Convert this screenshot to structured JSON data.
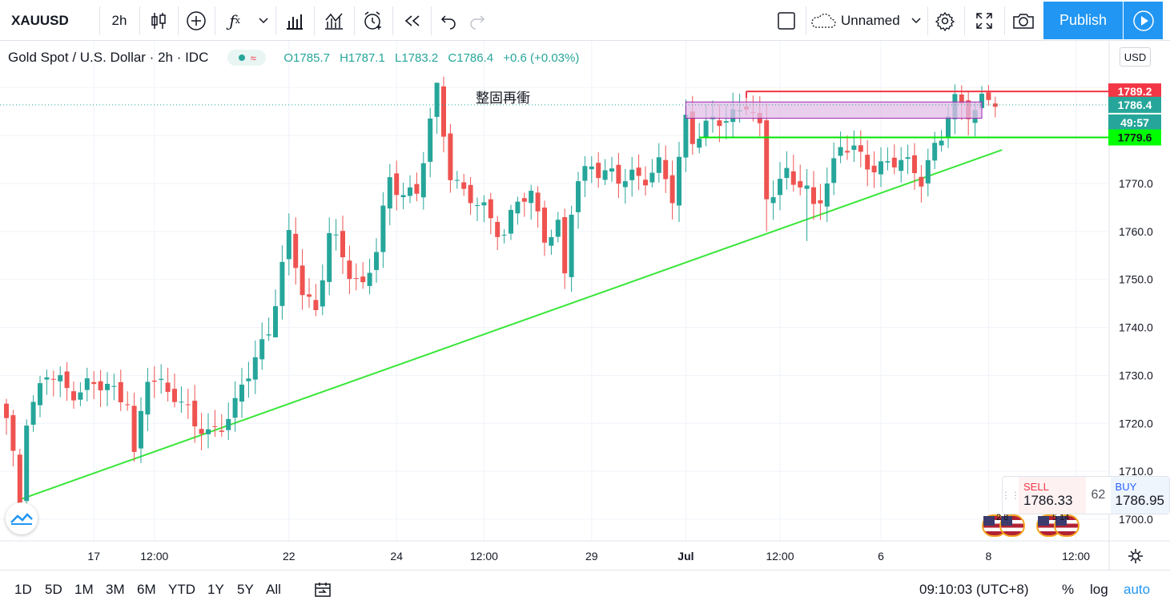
{
  "toolbar": {
    "symbol": "XAUUSD",
    "interval": "2h",
    "layout_name": "Unnamed",
    "publish_label": "Publish"
  },
  "legend": {
    "title": "Gold Spot / U.S. Dollar · 2h · IDC",
    "open": "O1785.7",
    "high": "H1787.1",
    "low": "L1783.2",
    "close": "C1786.4",
    "change": "+0.6 (+0.03%)"
  },
  "currency_button": "USD",
  "price_labels": {
    "resistance": "1789.2",
    "last": "1786.4",
    "countdown": "49:57",
    "support": "1779.6"
  },
  "chart_data": {
    "type": "candlestick",
    "symbol": "XAUUSD",
    "interval": "2h",
    "y_ticks": [
      1700,
      1710,
      1720,
      1730,
      1740,
      1750,
      1760,
      1770
    ],
    "y_tick_labels": [
      "1700.0",
      "1710.0",
      "1720.0",
      "1730.0",
      "1740.0",
      "1750.0",
      "1760.0",
      "1770.0"
    ],
    "ylim": [
      1695.5,
      1796.5
    ],
    "x_ticks": [
      {
        "label": "17",
        "x": 13
      },
      {
        "label": "12:00",
        "x": 22
      },
      {
        "label": "22",
        "x": 42
      },
      {
        "label": "24",
        "x": 58
      },
      {
        "label": "12:00",
        "x": 71
      },
      {
        "label": "29",
        "x": 87
      },
      {
        "label": "Jul",
        "x": 101
      },
      {
        "label": "12:00",
        "x": 115
      },
      {
        "label": "6",
        "x": 130
      },
      {
        "label": "8",
        "x": 146
      },
      {
        "label": "12:00",
        "x": 159
      }
    ],
    "anchors": [
      [
        0,
        1720
      ],
      [
        2,
        1704
      ],
      [
        3,
        1722
      ],
      [
        6,
        1730
      ],
      [
        9,
        1727
      ],
      [
        12,
        1728
      ],
      [
        15,
        1727
      ],
      [
        18,
        1726
      ],
      [
        19,
        1713
      ],
      [
        21,
        1729
      ],
      [
        25,
        1727
      ],
      [
        28,
        1719
      ],
      [
        30,
        1718
      ],
      [
        34,
        1723
      ],
      [
        37,
        1734
      ],
      [
        39,
        1740
      ],
      [
        42,
        1758
      ],
      [
        44,
        1748
      ],
      [
        46,
        1744
      ],
      [
        48,
        1759
      ],
      [
        51,
        1752
      ],
      [
        53,
        1749
      ],
      [
        55,
        1756
      ],
      [
        57,
        1770
      ],
      [
        59,
        1769
      ],
      [
        61,
        1768
      ],
      [
        64,
        1789
      ],
      [
        66,
        1773
      ],
      [
        68,
        1768
      ],
      [
        70,
        1765
      ],
      [
        72,
        1763
      ],
      [
        74,
        1760
      ],
      [
        76,
        1766
      ],
      [
        78,
        1767
      ],
      [
        80,
        1760
      ],
      [
        82,
        1761
      ],
      [
        83,
        1750
      ],
      [
        84,
        1764
      ],
      [
        85,
        1770
      ],
      [
        87,
        1775
      ],
      [
        89,
        1772
      ],
      [
        91,
        1770
      ],
      [
        93,
        1772
      ],
      [
        95,
        1772
      ],
      [
        97,
        1773
      ],
      [
        99,
        1767
      ],
      [
        101,
        1784
      ],
      [
        102,
        1780
      ],
      [
        104,
        1781
      ],
      [
        106,
        1783
      ],
      [
        108,
        1785
      ],
      [
        110,
        1787
      ],
      [
        112,
        1780
      ],
      [
        113,
        1767
      ],
      [
        114,
        1769
      ],
      [
        116,
        1773
      ],
      [
        118,
        1769
      ],
      [
        120,
        1765
      ],
      [
        122,
        1771
      ],
      [
        124,
        1778
      ],
      [
        127,
        1775
      ],
      [
        130,
        1774
      ],
      [
        133,
        1774
      ],
      [
        135,
        1773
      ],
      [
        136,
        1772
      ],
      [
        137,
        1775
      ],
      [
        139,
        1779
      ],
      [
        140,
        1784
      ],
      [
        141,
        1787
      ],
      [
        143,
        1786
      ],
      [
        145,
        1787
      ],
      [
        147,
        1786
      ]
    ],
    "lows": [
      [
        2,
        1703
      ],
      [
        19,
        1712
      ],
      [
        40,
        1744
      ],
      [
        83,
        1748
      ],
      [
        113,
        1760
      ],
      [
        119,
        1758
      ]
    ],
    "highs": [
      [
        64,
        1790
      ],
      [
        110,
        1789
      ]
    ],
    "last_price": 1786.4,
    "annotations": {
      "text": "整固再衝",
      "resistance_line": {
        "price": 1789.2,
        "from_x": 110,
        "color": "#f23645"
      },
      "support_line": {
        "price": 1779.6,
        "from_x": 103,
        "color": "#00e600"
      },
      "consolidation_box": {
        "x0": 101,
        "x1": 145,
        "y_top": 1787.0,
        "y_bottom": 1783.6,
        "color": "#e1bee7"
      },
      "trendline": {
        "x0": 2,
        "y0": 1704.1,
        "x1": 148,
        "y1": 1777.0,
        "color": "#39e639"
      }
    }
  },
  "sell_panel": {
    "label": "SELL",
    "price": "1786.33",
    "spread": "62",
    "buy_label": "BUY",
    "buy_price": "1786.95"
  },
  "events": {
    "first": "2 8",
    "second": "5 14"
  },
  "bottom": {
    "ranges": [
      "1D",
      "5D",
      "1M",
      "3M",
      "6M",
      "YTD",
      "1Y",
      "5Y",
      "All"
    ],
    "time": "09:10:03 (UTC+8)",
    "percent": "%",
    "log": "log",
    "auto": "auto"
  }
}
